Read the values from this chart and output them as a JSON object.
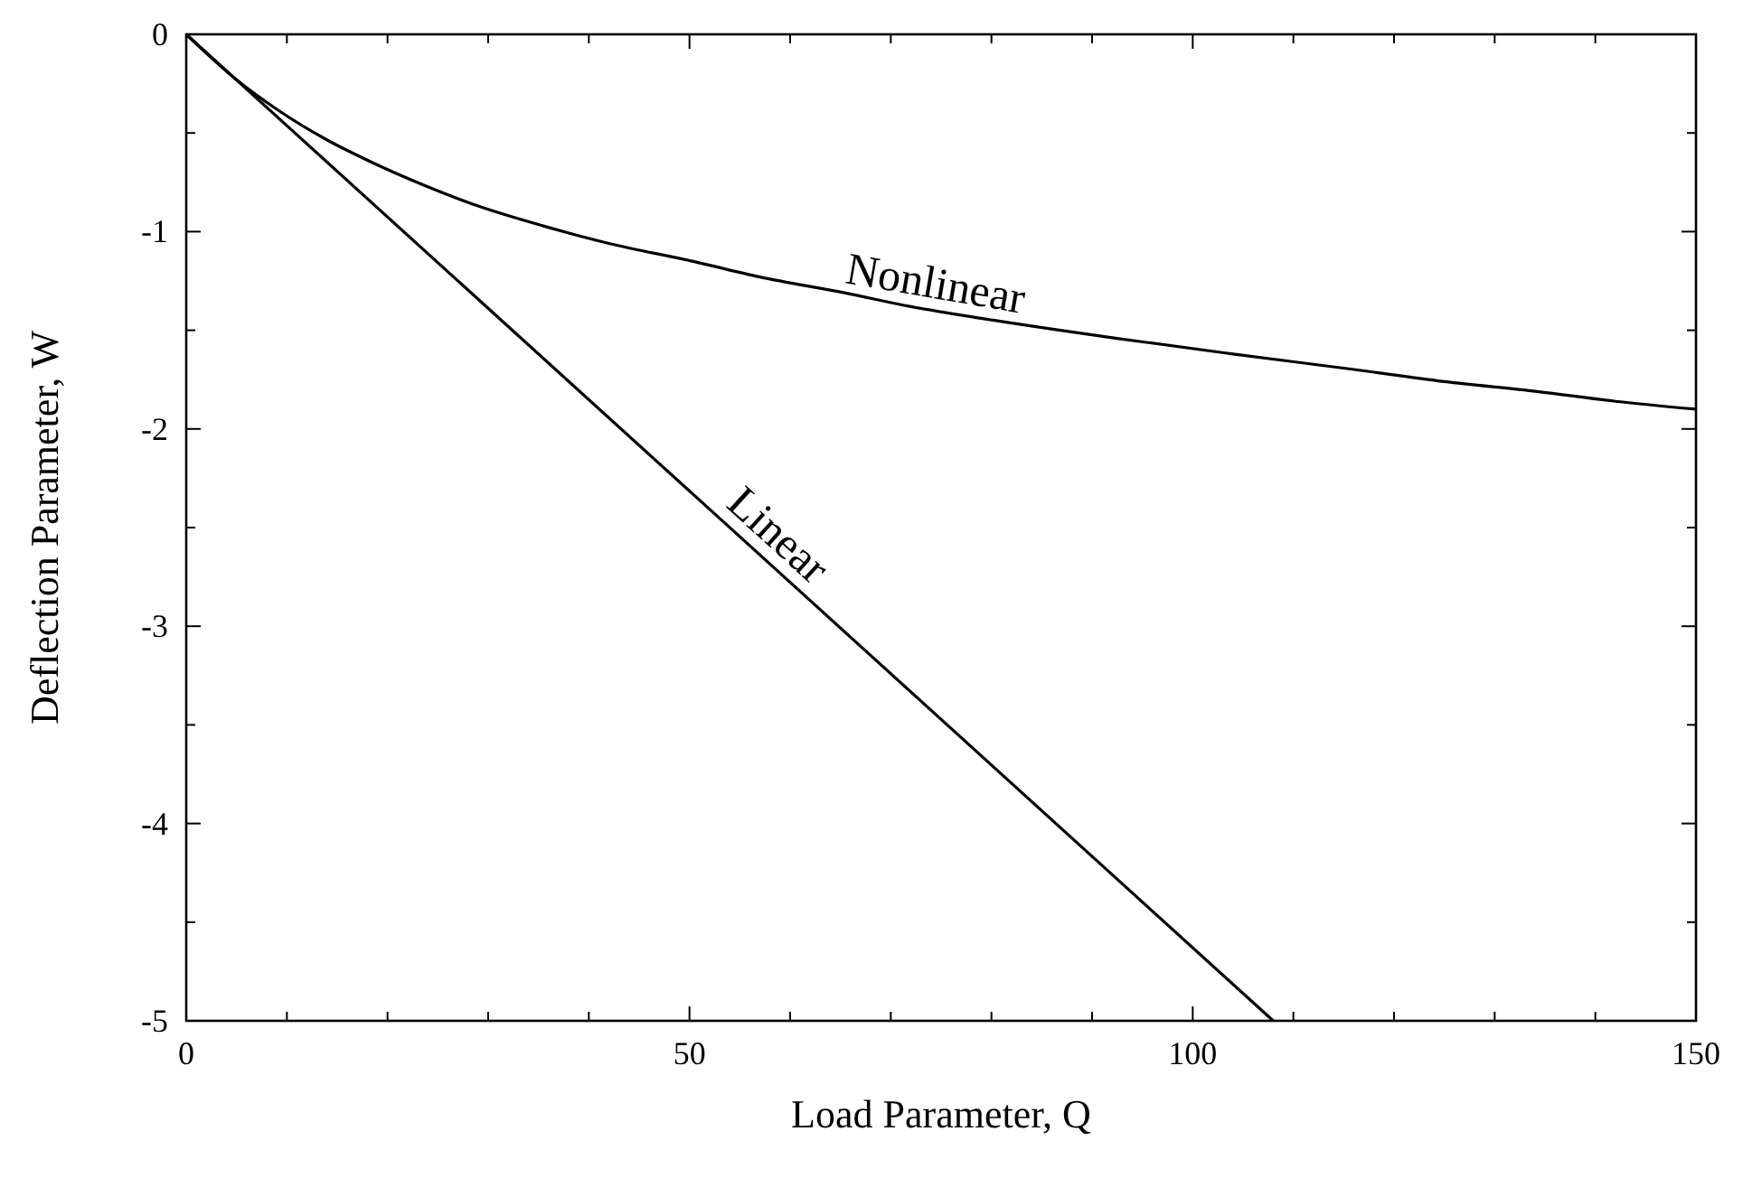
{
  "chart_data": {
    "type": "line",
    "xlabel": "Load Parameter, Q",
    "ylabel": "Deflection Parameter, W",
    "xlim": [
      0,
      150
    ],
    "ylim": [
      -5,
      0
    ],
    "xticks": [
      0,
      {
        "value": 10,
        "label": null
      },
      {
        "value": 20,
        "label": null
      },
      {
        "value": 30,
        "label": null
      },
      {
        "value": 40,
        "label": null
      },
      50,
      {
        "value": 60,
        "label": null
      },
      {
        "value": 70,
        "label": null
      },
      {
        "value": 80,
        "label": null
      },
      {
        "value": 90,
        "label": null
      },
      100,
      {
        "value": 110,
        "label": null
      },
      {
        "value": 120,
        "label": null
      },
      {
        "value": 130,
        "label": null
      },
      {
        "value": 140,
        "label": null
      },
      150
    ],
    "yticks": [
      -5,
      {
        "value": -4.5,
        "label": null
      },
      -4,
      {
        "value": -3.5,
        "label": null
      },
      -3,
      {
        "value": -2.5,
        "label": null
      },
      -2,
      {
        "value": -1.5,
        "label": null
      },
      -1,
      {
        "value": -0.5,
        "label": null
      },
      0
    ],
    "grid": false,
    "marker": "none",
    "line_style": "solid",
    "series": [
      {
        "color": "#000000",
        "x": [
          0,
          5,
          9,
          13.8,
          18.5,
          23.4,
          29,
          35.4,
          42,
          50.3,
          57,
          65.4,
          72,
          80.3,
          92.3,
          104,
          116.2,
          125,
          134.2,
          142,
          150
        ],
        "values": [
          0,
          -0.23,
          -0.38,
          -0.53,
          -0.65,
          -0.76,
          -0.87,
          -0.97,
          -1.06,
          -1.15,
          -1.23,
          -1.31,
          -1.38,
          -1.45,
          -1.54,
          -1.62,
          -1.7,
          -1.76,
          -1.81,
          -1.86,
          -1.9
        ]
      },
      {
        "color": "#000000",
        "x": [
          0,
          108
        ],
        "values": [
          0,
          -5
        ]
      }
    ],
    "annotations": [
      {
        "text": "Nonlinear",
        "x": 74,
        "y": -1.4
      },
      {
        "text": "Linear",
        "x": 57,
        "y": -2.64
      }
    ]
  }
}
